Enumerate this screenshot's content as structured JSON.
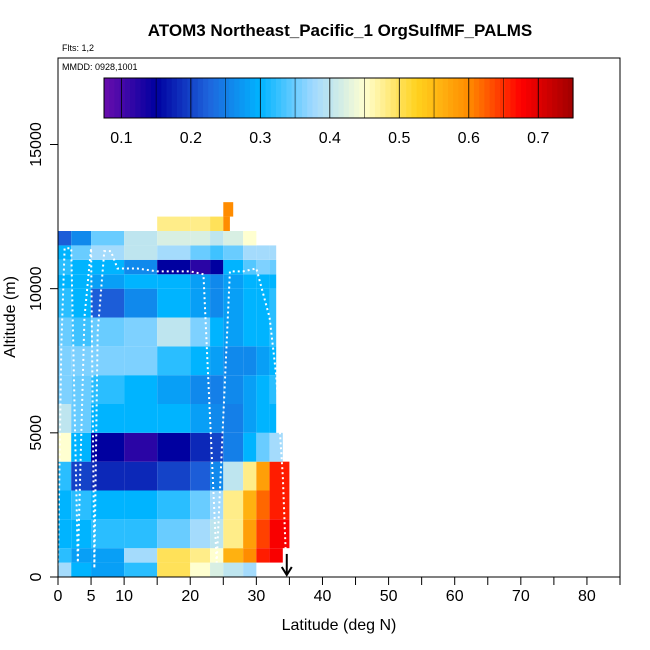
{
  "chart_data": {
    "type": "heatmap",
    "title": "ATOM3 Northeast_Pacific_1 OrgSulfMF_PALMS",
    "flights_label": "Flts: 1,2",
    "date_label": "MMDD: 0928,1001",
    "xlabel": "Latitude (deg N)",
    "ylabel": "Altitude (m)",
    "xlim": [
      0,
      85
    ],
    "ylim": [
      0,
      18000
    ],
    "x_ticks": [
      0,
      5,
      10,
      20,
      30,
      40,
      50,
      60,
      70,
      80
    ],
    "x_minor_ticks": [
      15,
      25,
      35,
      45,
      55,
      65,
      75,
      85
    ],
    "y_ticks": [
      0,
      5000,
      10000,
      15000
    ],
    "colorbar": {
      "min": 0.075,
      "max": 0.75,
      "ticks": [
        0.1,
        0.2,
        0.3,
        0.4,
        0.5,
        0.6,
        0.7
      ],
      "colors": [
        "#6a0dad",
        "#0000a0",
        "#1e64dc",
        "#00b4ff",
        "#9ed8ff",
        "#ffffd0",
        "#ffd21e",
        "#ff8c00",
        "#ff0000",
        "#a00000"
      ]
    },
    "grid": false,
    "legend": "colorbar-top",
    "bands": [
      {
        "alt": [
          0,
          500
        ],
        "x": [
          0,
          2,
          5,
          10,
          15,
          20,
          23,
          25,
          28,
          30,
          32,
          35
        ],
        "values": [
          0.38,
          0.3,
          0.28,
          0.32,
          0.5,
          0.45,
          0.42,
          0.4,
          0.38,
          0.36,
          0.36,
          0.4
        ]
      },
      {
        "alt": [
          500,
          1000
        ],
        "x": [
          0,
          2,
          5,
          10,
          15,
          20,
          23,
          25,
          28,
          30,
          32,
          35
        ],
        "values": [
          0.32,
          0.28,
          0.28,
          0.38,
          0.5,
          0.48,
          0.45,
          0.56,
          0.6,
          0.66,
          0.68,
          0.7
        ]
      },
      {
        "alt": [
          1000,
          2000
        ],
        "x": [
          0,
          2,
          5,
          10,
          15,
          20,
          23,
          25,
          28,
          30,
          32,
          35
        ],
        "values": [
          0.3,
          0.3,
          0.32,
          0.32,
          0.35,
          0.38,
          0.4,
          0.48,
          0.58,
          0.64,
          0.68,
          0.7
        ]
      },
      {
        "alt": [
          2000,
          3000
        ],
        "x": [
          0,
          2,
          5,
          10,
          15,
          20,
          23,
          25,
          28,
          30,
          32,
          35
        ],
        "values": [
          0.3,
          0.32,
          0.3,
          0.3,
          0.32,
          0.35,
          0.38,
          0.48,
          0.56,
          0.62,
          0.66,
          0.68
        ]
      },
      {
        "alt": [
          3000,
          4000
        ],
        "x": [
          0,
          2,
          5,
          10,
          15,
          20,
          23,
          25,
          28,
          30,
          32,
          35
        ],
        "values": [
          0.32,
          0.2,
          0.18,
          0.18,
          0.2,
          0.22,
          0.26,
          0.4,
          0.48,
          0.58,
          0.66,
          0.7
        ]
      },
      {
        "alt": [
          4000,
          5000
        ],
        "x": [
          0,
          2,
          5,
          10,
          15,
          20,
          23,
          25,
          28,
          30,
          32,
          35
        ],
        "values": [
          0.45,
          0.3,
          0.15,
          0.12,
          0.15,
          0.18,
          0.2,
          0.25,
          0.3,
          0.35,
          0.38,
          0.4
        ]
      },
      {
        "alt": [
          5000,
          6000
        ],
        "x": [
          0,
          2,
          5,
          10,
          15,
          20,
          23,
          25,
          28,
          30,
          32,
          35
        ],
        "values": [
          0.4,
          0.35,
          0.3,
          0.3,
          0.3,
          0.28,
          0.26,
          0.25,
          0.28,
          0.3,
          0.3,
          0.3
        ]
      },
      {
        "alt": [
          6000,
          7000
        ],
        "x": [
          0,
          2,
          5,
          10,
          15,
          20,
          23,
          25,
          28,
          30,
          32,
          35
        ],
        "values": [
          0.36,
          0.35,
          0.32,
          0.3,
          0.28,
          0.26,
          0.25,
          0.26,
          0.28,
          0.3,
          0.32,
          0.32
        ]
      },
      {
        "alt": [
          7000,
          8000
        ],
        "x": [
          0,
          2,
          5,
          10,
          15,
          20,
          23,
          25,
          28,
          30,
          32,
          35
        ],
        "values": [
          0.36,
          0.36,
          0.36,
          0.36,
          0.32,
          0.3,
          0.28,
          0.26,
          0.26,
          0.28,
          0.3,
          0.3
        ]
      },
      {
        "alt": [
          8000,
          9000
        ],
        "x": [
          0,
          2,
          5,
          10,
          15,
          20,
          23,
          25,
          28,
          30,
          32,
          35
        ],
        "values": [
          0.35,
          0.33,
          0.35,
          0.36,
          0.4,
          0.36,
          0.3,
          0.28,
          0.3,
          0.3,
          0.32,
          0.32
        ]
      },
      {
        "alt": [
          9000,
          10000
        ],
        "x": [
          0,
          2,
          5,
          10,
          15,
          20,
          23,
          25,
          28,
          30,
          32,
          35
        ],
        "values": [
          0.32,
          0.3,
          0.22,
          0.26,
          0.3,
          0.28,
          0.26,
          0.28,
          0.3,
          0.3,
          0.32,
          0.32
        ]
      },
      {
        "alt": [
          10000,
          10500
        ],
        "x": [
          0,
          2,
          5,
          10,
          15,
          20,
          23,
          25,
          28,
          30,
          32,
          35
        ],
        "values": [
          0.3,
          0.3,
          0.28,
          0.3,
          0.3,
          0.28,
          0.26,
          0.28,
          0.3,
          0.3,
          0.3,
          0.3
        ]
      },
      {
        "alt": [
          10500,
          11000
        ],
        "x": [
          0,
          2,
          5,
          10,
          15,
          20,
          23,
          25,
          28,
          30,
          32,
          35
        ],
        "values": [
          0.32,
          0.3,
          0.3,
          0.26,
          0.15,
          0.12,
          0.15,
          0.3,
          0.34,
          0.36,
          0.35,
          0.35
        ]
      },
      {
        "alt": [
          11000,
          11500
        ],
        "x": [
          0,
          2,
          5,
          10,
          15,
          20,
          23,
          25,
          28,
          30,
          32,
          35
        ],
        "values": [
          0.3,
          0.35,
          0.38,
          0.4,
          0.38,
          0.35,
          0.33,
          0.35,
          0.38,
          0.38,
          0.38,
          0.38
        ]
      },
      {
        "alt": [
          11500,
          12000
        ],
        "x": [
          0,
          2,
          5,
          10,
          15,
          20,
          23,
          25,
          28,
          30,
          32,
          35
        ],
        "values": [
          0.22,
          0.26,
          0.35,
          0.4,
          0.42,
          0.42,
          0.4,
          0.42,
          0.45,
          0.42,
          0.4,
          0.4
        ]
      },
      {
        "alt": [
          12000,
          12500
        ],
        "x": [
          0,
          2,
          5,
          10,
          15,
          20,
          23,
          25,
          28,
          30,
          32,
          35
        ],
        "values": [
          null,
          null,
          null,
          null,
          0.48,
          0.48,
          0.5,
          0.6,
          0.62,
          0.5,
          0.45,
          0.45
        ]
      },
      {
        "alt": [
          12500,
          13000
        ],
        "x": [
          0,
          2,
          5,
          10,
          15,
          20,
          23,
          25,
          28,
          30,
          32,
          35
        ],
        "values": [
          null,
          null,
          null,
          null,
          null,
          null,
          null,
          0.6,
          0.65,
          null,
          null,
          null
        ]
      }
    ],
    "band_extents": [
      [
        0,
        30
      ],
      [
        0,
        34
      ],
      [
        0,
        35
      ],
      [
        0,
        35
      ],
      [
        0,
        35
      ],
      [
        0,
        34
      ],
      [
        0,
        33
      ],
      [
        0,
        33
      ],
      [
        0,
        33
      ],
      [
        0,
        33
      ],
      [
        0,
        33
      ],
      [
        0,
        33
      ],
      [
        0,
        33
      ],
      [
        0,
        33
      ],
      [
        0,
        30
      ],
      [
        13,
        26
      ],
      [
        25,
        26.5
      ]
    ],
    "flight_track": {
      "name": "",
      "lat": [
        0,
        0.5,
        1,
        2,
        3,
        4,
        5,
        5.5,
        6,
        7,
        8,
        9,
        10,
        12,
        15,
        17,
        20,
        22,
        24,
        26,
        28,
        30,
        32,
        33,
        34,
        34.5,
        34.6
      ],
      "alt": [
        400,
        8000,
        11400,
        11400,
        500,
        9000,
        11400,
        300,
        8500,
        11300,
        11300,
        10700,
        10700,
        10700,
        10600,
        10600,
        10600,
        10500,
        500,
        10600,
        10600,
        10700,
        9000,
        7000,
        3500,
        500,
        0
      ]
    },
    "end_marker_lat": 34.6
  }
}
